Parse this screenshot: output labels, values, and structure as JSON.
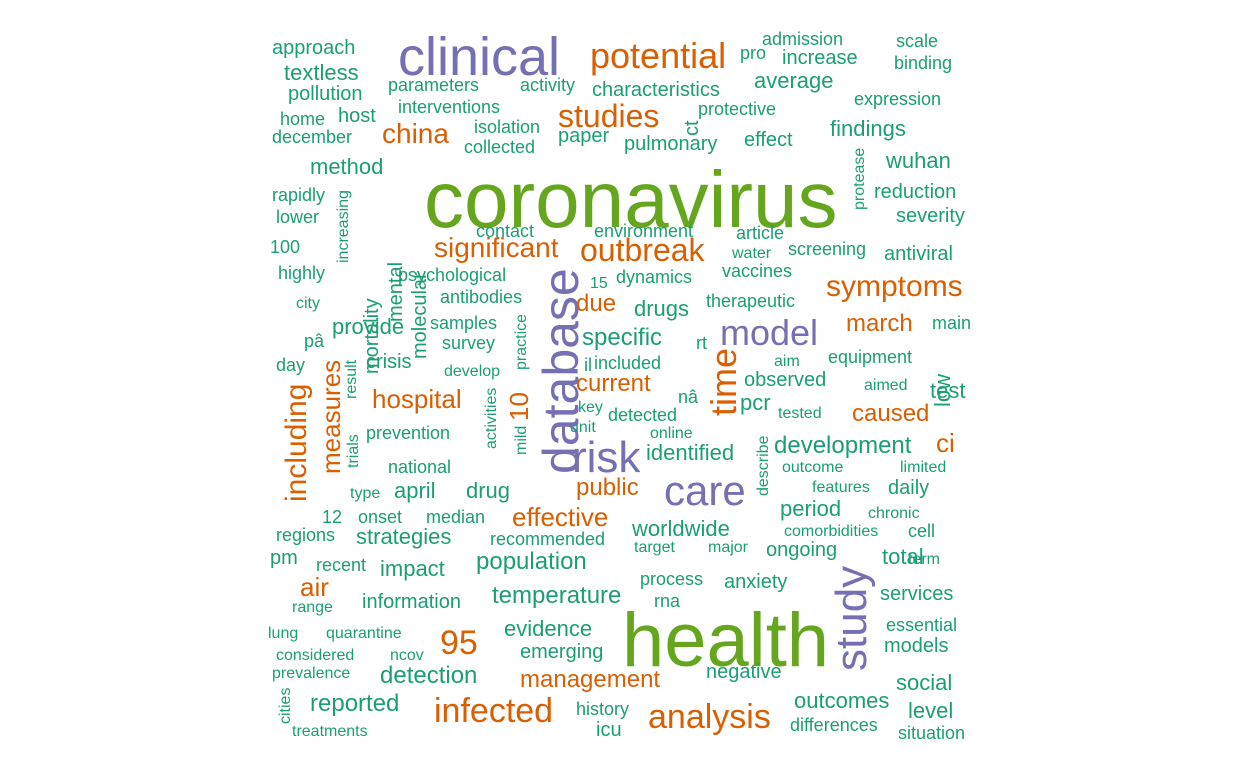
{
  "colors": {
    "teal": "#1B9E77",
    "orange": "#D95F02",
    "purple": "#7570B3",
    "green": "#66A61E"
  },
  "words": [
    {
      "text": "coronavirus",
      "color": "green",
      "rank": 1
    },
    {
      "text": "health",
      "color": "green",
      "rank": 2
    },
    {
      "text": "clinical",
      "color": "purple",
      "rank": 3
    },
    {
      "text": "database",
      "color": "purple",
      "rank": 4
    },
    {
      "text": "risk",
      "color": "purple",
      "rank": 5
    },
    {
      "text": "care",
      "color": "purple",
      "rank": 6
    },
    {
      "text": "study",
      "color": "purple",
      "rank": 7
    },
    {
      "text": "model",
      "color": "purple",
      "rank": 8
    },
    {
      "text": "time",
      "color": "orange",
      "rank": 9
    },
    {
      "text": "potential",
      "color": "orange",
      "rank": 10
    },
    {
      "text": "outbreak",
      "color": "orange",
      "rank": 11
    },
    {
      "text": "analysis",
      "color": "orange",
      "rank": 12
    },
    {
      "text": "infected",
      "color": "orange",
      "rank": 13
    },
    {
      "text": "studies",
      "color": "orange",
      "rank": 14
    },
    {
      "text": "symptoms",
      "color": "orange",
      "rank": 15
    },
    {
      "text": "including",
      "color": "orange",
      "rank": 16
    },
    {
      "text": "china",
      "color": "orange",
      "rank": 17
    },
    {
      "text": "significant",
      "color": "orange",
      "rank": 18
    },
    {
      "text": "95",
      "color": "orange",
      "rank": 19
    },
    {
      "text": "measures",
      "color": "orange",
      "rank": 20
    },
    {
      "text": "hospital",
      "color": "orange",
      "rank": 21
    },
    {
      "text": "march",
      "color": "orange",
      "rank": 22
    },
    {
      "text": "caused",
      "color": "orange",
      "rank": 23
    },
    {
      "text": "management",
      "color": "orange",
      "rank": 24
    },
    {
      "text": "effective",
      "color": "orange",
      "rank": 25
    },
    {
      "text": "public",
      "color": "orange",
      "rank": 26
    },
    {
      "text": "current",
      "color": "orange",
      "rank": 27
    },
    {
      "text": "due",
      "color": "orange",
      "rank": 28
    },
    {
      "text": "air",
      "color": "orange",
      "rank": 29
    },
    {
      "text": "ci",
      "color": "orange",
      "rank": 30
    },
    {
      "text": "10",
      "color": "orange",
      "rank": 31
    },
    {
      "text": "specific",
      "color": "teal",
      "rank": 32
    },
    {
      "text": "population",
      "color": "teal",
      "rank": 33
    },
    {
      "text": "temperature",
      "color": "teal",
      "rank": 34
    },
    {
      "text": "development",
      "color": "teal",
      "rank": 35
    },
    {
      "text": "detection",
      "color": "teal",
      "rank": 36
    },
    {
      "text": "reported",
      "color": "teal",
      "rank": 37
    },
    {
      "text": "identified",
      "color": "teal",
      "rank": 38
    },
    {
      "text": "worldwide",
      "color": "teal",
      "rank": 39
    },
    {
      "text": "provide",
      "color": "teal",
      "rank": 40
    },
    {
      "text": "evidence",
      "color": "teal",
      "rank": 41
    },
    {
      "text": "strategies",
      "color": "teal",
      "rank": 42
    },
    {
      "text": "impact",
      "color": "teal",
      "rank": 43
    },
    {
      "text": "information",
      "color": "teal",
      "rank": 44
    },
    {
      "text": "emerging",
      "color": "teal",
      "rank": 45
    },
    {
      "text": "outcomes",
      "color": "teal",
      "rank": 46
    },
    {
      "text": "findings",
      "color": "teal",
      "rank": 47
    },
    {
      "text": "wuhan",
      "color": "teal",
      "rank": 48
    },
    {
      "text": "average",
      "color": "teal",
      "rank": 49
    },
    {
      "text": "characteristics",
      "color": "teal",
      "rank": 50
    },
    {
      "text": "drugs",
      "color": "teal",
      "rank": 51
    },
    {
      "text": "period",
      "color": "teal",
      "rank": 52
    },
    {
      "text": "ongoing",
      "color": "teal",
      "rank": 53
    },
    {
      "text": "anxiety",
      "color": "teal",
      "rank": 54
    },
    {
      "text": "total",
      "color": "teal",
      "rank": 55
    },
    {
      "text": "level",
      "color": "teal",
      "rank": 56
    },
    {
      "text": "social",
      "color": "teal",
      "rank": 57
    },
    {
      "text": "models",
      "color": "teal",
      "rank": 58
    },
    {
      "text": "april",
      "color": "teal",
      "rank": 59
    },
    {
      "text": "drug",
      "color": "teal",
      "rank": 60
    },
    {
      "text": "mortality",
      "color": "teal",
      "rank": 61
    },
    {
      "text": "mental",
      "color": "teal",
      "rank": 62
    },
    {
      "text": "molecular",
      "color": "teal",
      "rank": 63
    },
    {
      "text": "textless",
      "color": "teal",
      "rank": 64
    },
    {
      "text": "method",
      "color": "teal",
      "rank": 65
    },
    {
      "text": "reduction",
      "color": "teal",
      "rank": 66
    },
    {
      "text": "increase",
      "color": "teal",
      "rank": 67
    },
    {
      "text": "negative",
      "color": "teal",
      "rank": 68
    },
    {
      "text": "pcr",
      "color": "teal",
      "rank": 69
    },
    {
      "text": "low",
      "color": "teal",
      "rank": 70
    },
    {
      "text": "test",
      "color": "teal",
      "rank": 71
    },
    {
      "text": "daily",
      "color": "teal",
      "rank": 72
    },
    {
      "text": "services",
      "color": "teal",
      "rank": 73
    },
    {
      "text": "antiviral",
      "color": "teal",
      "rank": 74
    },
    {
      "text": "severity",
      "color": "teal",
      "rank": 75
    },
    {
      "text": "crisis",
      "color": "teal",
      "rank": 76
    },
    {
      "text": "effect",
      "color": "teal",
      "rank": 77
    },
    {
      "text": "pulmonary",
      "color": "teal",
      "rank": 78
    },
    {
      "text": "observed",
      "color": "teal",
      "rank": 79
    },
    {
      "text": "approach",
      "color": "teal",
      "rank": 80
    },
    {
      "text": "pollution",
      "color": "teal",
      "rank": 81
    },
    {
      "text": "host",
      "color": "teal",
      "rank": 82
    },
    {
      "text": "paper",
      "color": "teal",
      "rank": 83
    },
    {
      "text": "activity",
      "color": "teal",
      "rank": 84
    },
    {
      "text": "scale",
      "color": "teal",
      "rank": 85
    },
    {
      "text": "binding",
      "color": "teal",
      "rank": 86
    },
    {
      "text": "expression",
      "color": "teal",
      "rank": 87
    },
    {
      "text": "admission",
      "color": "teal",
      "rank": 88
    },
    {
      "text": "pro",
      "color": "teal",
      "rank": 89
    },
    {
      "text": "parameters",
      "color": "teal",
      "rank": 90
    },
    {
      "text": "interventions",
      "color": "teal",
      "rank": 91
    },
    {
      "text": "protective",
      "color": "teal",
      "rank": 92
    },
    {
      "text": "isolation",
      "color": "teal",
      "rank": 93
    },
    {
      "text": "collected",
      "color": "teal",
      "rank": 94
    },
    {
      "text": "ct",
      "color": "teal",
      "rank": 95
    },
    {
      "text": "home",
      "color": "teal",
      "rank": 96
    },
    {
      "text": "december",
      "color": "teal",
      "rank": 97
    },
    {
      "text": "rapidly",
      "color": "teal",
      "rank": 98
    },
    {
      "text": "lower",
      "color": "teal",
      "rank": 99
    },
    {
      "text": "100",
      "color": "teal",
      "rank": 100
    },
    {
      "text": "highly",
      "color": "teal",
      "rank": 101
    },
    {
      "text": "city",
      "color": "teal",
      "rank": 102
    },
    {
      "text": "increasing",
      "color": "teal",
      "rank": 103
    },
    {
      "text": "contact",
      "color": "teal",
      "rank": 104
    },
    {
      "text": "environment",
      "color": "teal",
      "rank": 105
    },
    {
      "text": "article",
      "color": "teal",
      "rank": 106
    },
    {
      "text": "water",
      "color": "teal",
      "rank": 107
    },
    {
      "text": "screening",
      "color": "teal",
      "rank": 108
    },
    {
      "text": "vaccines",
      "color": "teal",
      "rank": 109
    },
    {
      "text": "protease",
      "color": "teal",
      "rank": 110
    },
    {
      "text": "psychological",
      "color": "teal",
      "rank": 111
    },
    {
      "text": "antibodies",
      "color": "teal",
      "rank": 112
    },
    {
      "text": "15",
      "color": "teal",
      "rank": 113
    },
    {
      "text": "dynamics",
      "color": "teal",
      "rank": 114
    },
    {
      "text": "therapeutic",
      "color": "teal",
      "rank": 115
    },
    {
      "text": "samples",
      "color": "teal",
      "rank": 116
    },
    {
      "text": "survey",
      "color": "teal",
      "rank": 117
    },
    {
      "text": "practice",
      "color": "teal",
      "rank": 118
    },
    {
      "text": "pâ",
      "color": "teal",
      "rank": 119
    },
    {
      "text": "day",
      "color": "teal",
      "rank": 120
    },
    {
      "text": "result",
      "color": "teal",
      "rank": 121
    },
    {
      "text": "develop",
      "color": "teal",
      "rank": 122
    },
    {
      "text": "il",
      "color": "teal",
      "rank": 123
    },
    {
      "text": "included",
      "color": "teal",
      "rank": 124
    },
    {
      "text": "rt",
      "color": "teal",
      "rank": 125
    },
    {
      "text": "nâ",
      "color": "teal",
      "rank": 126
    },
    {
      "text": "aim",
      "color": "teal",
      "rank": 127
    },
    {
      "text": "equipment",
      "color": "teal",
      "rank": 128
    },
    {
      "text": "main",
      "color": "teal",
      "rank": 129
    },
    {
      "text": "aimed",
      "color": "teal",
      "rank": 130
    },
    {
      "text": "key",
      "color": "teal",
      "rank": 131
    },
    {
      "text": "unit",
      "color": "teal",
      "rank": 132
    },
    {
      "text": "detected",
      "color": "teal",
      "rank": 133
    },
    {
      "text": "tested",
      "color": "teal",
      "rank": 134
    },
    {
      "text": "online",
      "color": "teal",
      "rank": 135
    },
    {
      "text": "prevention",
      "color": "teal",
      "rank": 136
    },
    {
      "text": "trials",
      "color": "teal",
      "rank": 137
    },
    {
      "text": "national",
      "color": "teal",
      "rank": 138
    },
    {
      "text": "activities",
      "color": "teal",
      "rank": 139
    },
    {
      "text": "mild",
      "color": "teal",
      "rank": 140
    },
    {
      "text": "type",
      "color": "teal",
      "rank": 141
    },
    {
      "text": "describe",
      "color": "teal",
      "rank": 142
    },
    {
      "text": "outcome",
      "color": "teal",
      "rank": 143
    },
    {
      "text": "limited",
      "color": "teal",
      "rank": 144
    },
    {
      "text": "features",
      "color": "teal",
      "rank": 145
    },
    {
      "text": "12",
      "color": "teal",
      "rank": 146
    },
    {
      "text": "onset",
      "color": "teal",
      "rank": 147
    },
    {
      "text": "median",
      "color": "teal",
      "rank": 148
    },
    {
      "text": "chronic",
      "color": "teal",
      "rank": 149
    },
    {
      "text": "regions",
      "color": "teal",
      "rank": 150
    },
    {
      "text": "recommended",
      "color": "teal",
      "rank": 151
    },
    {
      "text": "comorbidities",
      "color": "teal",
      "rank": 152
    },
    {
      "text": "cell",
      "color": "teal",
      "rank": 153
    },
    {
      "text": "target",
      "color": "teal",
      "rank": 154
    },
    {
      "text": "major",
      "color": "teal",
      "rank": 155
    },
    {
      "text": "pm",
      "color": "teal",
      "rank": 156
    },
    {
      "text": "recent",
      "color": "teal",
      "rank": 157
    },
    {
      "text": "term",
      "color": "teal",
      "rank": 158
    },
    {
      "text": "process",
      "color": "teal",
      "rank": 159
    },
    {
      "text": "range",
      "color": "teal",
      "rank": 160
    },
    {
      "text": "rna",
      "color": "teal",
      "rank": 161
    },
    {
      "text": "lung",
      "color": "teal",
      "rank": 162
    },
    {
      "text": "quarantine",
      "color": "teal",
      "rank": 163
    },
    {
      "text": "essential",
      "color": "teal",
      "rank": 164
    },
    {
      "text": "considered",
      "color": "teal",
      "rank": 165
    },
    {
      "text": "ncov",
      "color": "teal",
      "rank": 166
    },
    {
      "text": "prevalence",
      "color": "teal",
      "rank": 167
    },
    {
      "text": "cities",
      "color": "teal",
      "rank": 168
    },
    {
      "text": "history",
      "color": "teal",
      "rank": 169
    },
    {
      "text": "differences",
      "color": "teal",
      "rank": 170
    },
    {
      "text": "treatments",
      "color": "teal",
      "rank": 171
    },
    {
      "text": "icu",
      "color": "teal",
      "rank": 172
    },
    {
      "text": "situation",
      "color": "teal",
      "rank": 173
    }
  ]
}
